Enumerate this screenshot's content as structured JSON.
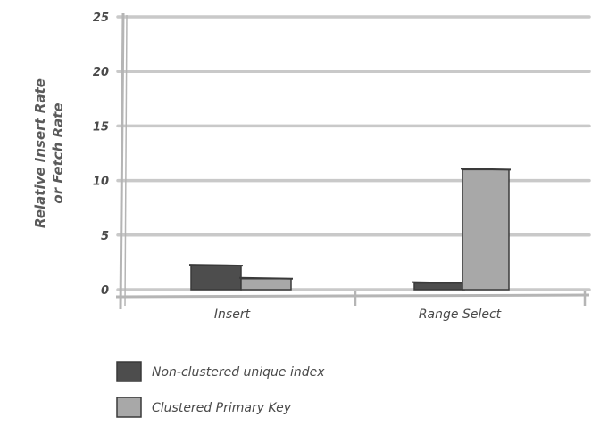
{
  "colors": {
    "grid": "#c9c9c9",
    "axis": "#b5b5b5",
    "series_dark": "#4d4d4d",
    "series_light": "#a8a8a8",
    "outline": "#3a3a3a",
    "text": "#4a4a4a"
  },
  "chart_data": {
    "type": "bar",
    "title": "",
    "xlabel": "",
    "ylabel": [
      "Relative Insert Rate",
      "or Fetch Rate"
    ],
    "ylim": [
      0,
      25
    ],
    "yticks": [
      "0",
      "5",
      "10",
      "15",
      "20",
      "25"
    ],
    "grid": true,
    "legend_position": "bottom-left",
    "categories": [
      "Insert",
      "Range Select"
    ],
    "series": [
      {
        "name": "Non-clustered unique index",
        "values": [
          2.2,
          0.6
        ],
        "color": "#4d4d4d"
      },
      {
        "name": "Clustered Primary Key",
        "values": [
          1.0,
          11.0
        ],
        "color": "#a8a8a8"
      }
    ]
  }
}
